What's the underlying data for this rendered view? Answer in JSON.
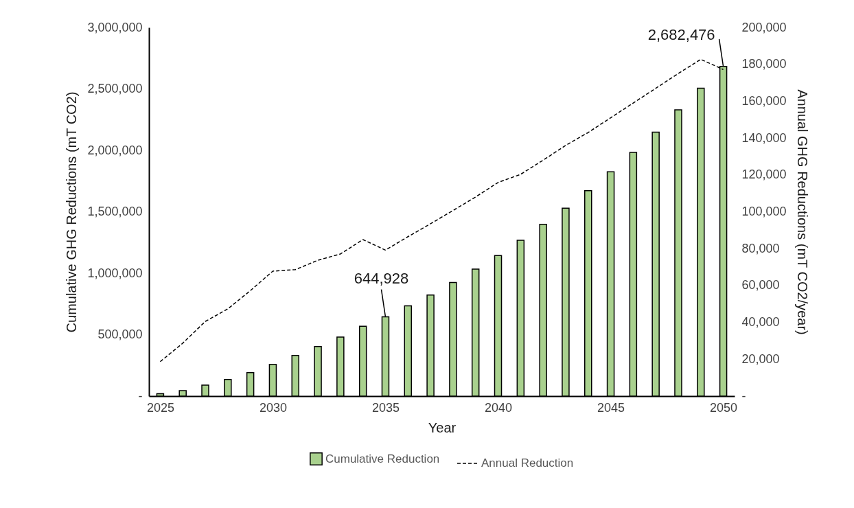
{
  "chart_data": {
    "type": "bar",
    "xlabel": "Year",
    "ylabel": "Cumulative GHG Reductions (mT CO2)",
    "y2label": "Annual GHG Reductions (mT CO2/year)",
    "x": [
      2025,
      2026,
      2027,
      2028,
      2029,
      2030,
      2031,
      2032,
      2033,
      2034,
      2035,
      2036,
      2037,
      2038,
      2039,
      2040,
      2041,
      2042,
      2043,
      2044,
      2045,
      2046,
      2047,
      2048,
      2049,
      2050
    ],
    "series": [
      {
        "name": "Cumulative Reduction",
        "color": "#a9d18e",
        "values": [
          20000,
          45000,
          89000,
          136000,
          192000,
          259000,
          331000,
          404000,
          480000,
          568000,
          644928,
          734000,
          823000,
          925000,
          1034000,
          1144000,
          1268000,
          1398000,
          1530000,
          1672000,
          1825000,
          1983000,
          2148000,
          2329000,
          2505000,
          2682476
        ]
      },
      {
        "name": "Annual Reduction",
        "type": "line",
        "axis": "y2",
        "color": "#000000",
        "line_style": "dashed",
        "values": [
          18700,
          28700,
          40500,
          47300,
          57200,
          67800,
          68600,
          73700,
          77100,
          84900,
          79200,
          86500,
          93500,
          100700,
          108000,
          115900,
          120300,
          128000,
          136000,
          143000,
          151000,
          159000,
          167000,
          175000,
          182700,
          177200
        ]
      }
    ],
    "xlim": [
      2024.5,
      2050.5
    ],
    "xticks": [
      2025,
      2030,
      2035,
      2040,
      2045,
      2050
    ],
    "ylim": [
      0,
      3000000
    ],
    "yticks": [
      {
        "value": 0,
        "label": "-"
      },
      {
        "value": 500000,
        "label": "500,000"
      },
      {
        "value": 1000000,
        "label": "1,000,000"
      },
      {
        "value": 1500000,
        "label": "1,500,000"
      },
      {
        "value": 2000000,
        "label": "2,000,000"
      },
      {
        "value": 2500000,
        "label": "2,500,000"
      },
      {
        "value": 3000000,
        "label": "3,000,000"
      }
    ],
    "y2lim": [
      0,
      200000
    ],
    "y2ticks": [
      {
        "value": 0,
        "label": "-"
      },
      {
        "value": 20000,
        "label": "20,000"
      },
      {
        "value": 40000,
        "label": "40,000"
      },
      {
        "value": 60000,
        "label": "60,000"
      },
      {
        "value": 80000,
        "label": "80,000"
      },
      {
        "value": 100000,
        "label": "100,000"
      },
      {
        "value": 120000,
        "label": "120,000"
      },
      {
        "value": 140000,
        "label": "140,000"
      },
      {
        "value": 160000,
        "label": "160,000"
      },
      {
        "value": 180000,
        "label": "180,000"
      },
      {
        "value": 200000,
        "label": "200,000"
      }
    ],
    "annotations": [
      {
        "text": "644,928",
        "x": 2035,
        "y": 644928
      },
      {
        "text": "2,682,476",
        "x": 2050,
        "y": 2682476
      }
    ],
    "grid": false,
    "legend": "bottom",
    "marker": "none"
  }
}
